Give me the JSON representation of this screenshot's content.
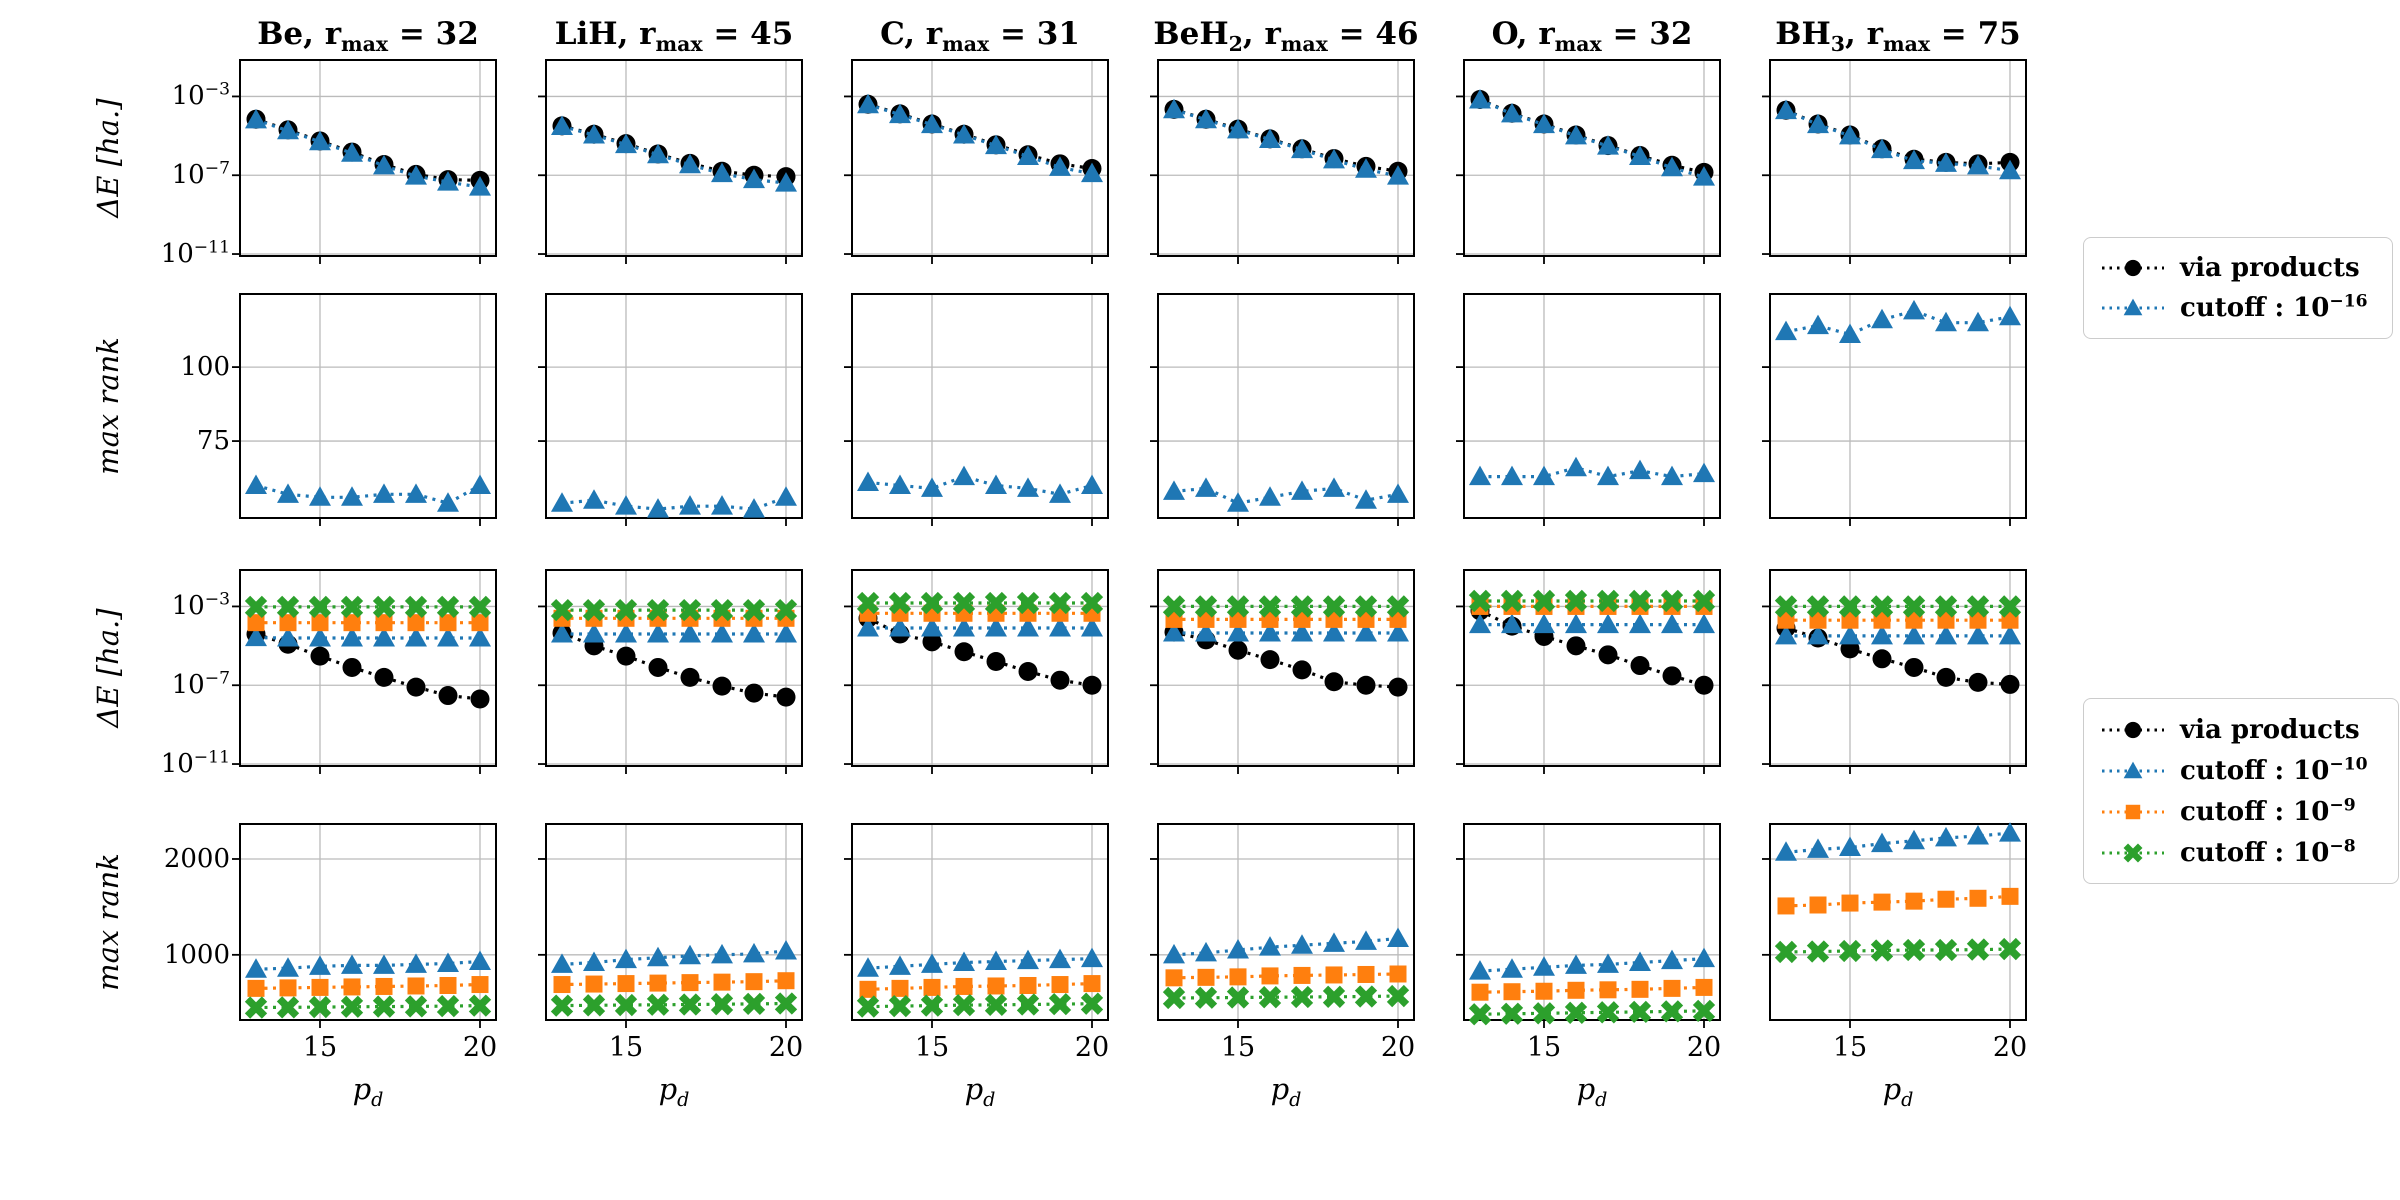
{
  "columns": [
    {
      "title": "Be,  r_max = 32"
    },
    {
      "title": "LiH,  r_max = 45"
    },
    {
      "title": "C,  r_max = 31"
    },
    {
      "title": "BeH_2,  r_max = 46"
    },
    {
      "title": "O,  r_max = 32"
    },
    {
      "title": "BH_3,  r_max = 75"
    }
  ],
  "colors": {
    "black": "#000000",
    "blue": "#1f77b4",
    "orange": "#ff7f0e",
    "green": "#2ca02c",
    "grid": "#bbbbbb"
  },
  "legends": [
    {
      "entries": [
        {
          "label": "via products",
          "series": "via products"
        },
        {
          "label": "cutoff : 10^-16",
          "series": "cutoff : 10^-16"
        }
      ]
    },
    {
      "entries": [
        {
          "label": "via products",
          "series": "via products"
        },
        {
          "label": "cutoff : 10^-10",
          "series": "cutoff : 10^-10"
        },
        {
          "label": "cutoff : 10^-9",
          "series": "cutoff : 10^-9"
        },
        {
          "label": "cutoff : 10^-8",
          "series": "cutoff : 10^-8"
        }
      ]
    }
  ],
  "chart_data": {
    "type": "scatter",
    "grid": true,
    "x_label": "p_d",
    "x": [
      13,
      14,
      15,
      16,
      17,
      18,
      19,
      20
    ],
    "x_ticks": [
      15,
      20
    ],
    "x_range": [
      12.5,
      20.5
    ],
    "columns": [
      "Be",
      "LiH",
      "C",
      "BeH_2",
      "O",
      "BH_3"
    ],
    "series_styles": {
      "via products": {
        "color": "#000000",
        "marker": "circle"
      },
      "cutoff : 10^-16": {
        "color": "#1f77b4",
        "marker": "triangle"
      },
      "cutoff : 10^-10": {
        "color": "#1f77b4",
        "marker": "triangle"
      },
      "cutoff : 10^-9": {
        "color": "#ff7f0e",
        "marker": "square"
      },
      "cutoff : 10^-8": {
        "color": "#2ca02c",
        "marker": "x"
      }
    },
    "rows": [
      {
        "ylabel": "ΔE [ha.]",
        "scale": "log",
        "yticks": [
          "10^-3",
          "10^-7",
          "10^-11"
        ],
        "ylim_exp": [
          -1.15,
          -11.1
        ],
        "series": [
          "via products",
          "cutoff : 10^-16"
        ]
      },
      {
        "ylabel": "max rank",
        "scale": "linear",
        "yticks": [
          75,
          100
        ],
        "ylim": [
          49,
          124.7
        ],
        "series": [
          "cutoff : 10^-16"
        ]
      },
      {
        "ylabel": "ΔE [ha.]",
        "scale": "log",
        "yticks": [
          "10^-3",
          "10^-7",
          "10^-11"
        ],
        "ylim_exp": [
          -1.15,
          -11.1
        ],
        "series": [
          "via products",
          "cutoff : 10^-10",
          "cutoff : 10^-9",
          "cutoff : 10^-8"
        ]
      },
      {
        "ylabel": "max rank",
        "scale": "linear",
        "yticks": [
          1000,
          2000
        ],
        "ylim": [
          320,
          2365
        ],
        "series": [
          "cutoff : 10^-10",
          "cutoff : 10^-9",
          "cutoff : 10^-8"
        ]
      }
    ],
    "values": [
      [
        {
          "via products": [
            7e-05,
            2e-05,
            5.5e-06,
            1.5e-06,
            3.5e-07,
            1.1e-07,
            6e-08,
            5.5e-08
          ],
          "cutoff : 10^-16": [
            6.5e-05,
            1.8e-05,
            5e-06,
            1.3e-06,
            3e-07,
            9e-08,
            4.5e-08,
            2.5e-08
          ]
        },
        {
          "via products": [
            3.2e-05,
            1.2e-05,
            4e-06,
            1.2e-06,
            4e-07,
            1.6e-07,
            1e-07,
            8.5e-08
          ],
          "cutoff : 10^-16": [
            3e-05,
            1.1e-05,
            3.6e-06,
            1.1e-06,
            3.4e-07,
            1.2e-07,
            6e-08,
            4e-08
          ]
        },
        {
          "via products": [
            0.0004,
            0.00013,
            4e-05,
            1.2e-05,
            3.5e-06,
            1.1e-06,
            3.8e-07,
            2.2e-07
          ],
          "cutoff : 10^-16": [
            0.00038,
            0.00012,
            3.7e-05,
            1.1e-05,
            3.2e-06,
            9e-07,
            2.5e-07,
            1.2e-07
          ]
        },
        {
          "via products": [
            0.00022,
            7e-05,
            2.2e-05,
            7e-06,
            2.2e-06,
            7e-07,
            2.8e-07,
            1.6e-07
          ],
          "cutoff : 10^-16": [
            0.00021,
            6.6e-05,
            2e-05,
            6.5e-06,
            2e-06,
            6e-07,
            2e-07,
            9e-08
          ]
        },
        {
          "via products": [
            0.0007,
            0.00014,
            4e-05,
            1.1e-05,
            3.2e-06,
            1e-06,
            3.2e-07,
            1.4e-07
          ],
          "cutoff : 10^-16": [
            0.00066,
            0.00013,
            3.7e-05,
            1e-05,
            3e-06,
            9e-07,
            2.4e-07,
            8e-08
          ]
        },
        {
          "via products": [
            0.0002,
            4e-05,
            1.1e-05,
            2.2e-06,
            6.5e-07,
            4.5e-07,
            3.8e-07,
            4.5e-07
          ],
          "cutoff : 10^-16": [
            0.00019,
            3.7e-05,
            1e-05,
            2e-06,
            5.5e-07,
            4e-07,
            3e-07,
            1.7e-07
          ]
        }
      ],
      [
        {
          "cutoff : 10^-16": [
            60,
            57,
            56,
            56,
            57,
            57,
            54,
            60
          ]
        },
        {
          "cutoff : 10^-16": [
            54,
            55,
            53,
            52,
            53,
            53,
            52,
            56
          ]
        },
        {
          "cutoff : 10^-16": [
            61,
            60,
            59,
            63,
            60,
            59,
            57,
            60
          ]
        },
        {
          "cutoff : 10^-16": [
            58,
            59,
            54,
            56,
            58,
            59,
            55,
            57
          ]
        },
        {
          "cutoff : 10^-16": [
            63,
            63,
            63,
            66,
            63,
            65,
            63,
            64
          ]
        },
        {
          "cutoff : 10^-16": [
            112,
            114,
            111,
            116,
            119,
            115,
            115,
            117
          ]
        }
      ],
      [
        {
          "via products": [
            4e-05,
            1.2e-05,
            3e-06,
            8e-07,
            2.5e-07,
            8e-08,
            3e-08,
            2e-08
          ],
          "cutoff : 10^-10": [
            2.6e-05,
            2.5e-05,
            2.5e-05,
            2.5e-05,
            2.5e-05,
            2.5e-05,
            2.5e-05,
            2.5e-05
          ],
          "cutoff : 10^-9": [
            0.00015,
            0.00015,
            0.00015,
            0.00015,
            0.00015,
            0.00015,
            0.00015,
            0.00015
          ],
          "cutoff : 10^-8": [
            0.00095,
            0.00095,
            0.00095,
            0.00095,
            0.00095,
            0.00095,
            0.00095,
            0.00095
          ]
        },
        {
          "via products": [
            4.5e-05,
            1e-05,
            3e-06,
            8e-07,
            2.5e-07,
            9e-08,
            4e-08,
            2.5e-08
          ],
          "cutoff : 10^-10": [
            4e-05,
            4e-05,
            4e-05,
            4e-05,
            4e-05,
            4e-05,
            4e-05,
            4e-05
          ],
          "cutoff : 10^-9": [
            0.00025,
            0.00025,
            0.00025,
            0.00025,
            0.00025,
            0.00025,
            0.00025,
            0.00025
          ],
          "cutoff : 10^-8": [
            0.00065,
            0.00065,
            0.00065,
            0.00065,
            0.00065,
            0.00065,
            0.00065,
            0.00065
          ]
        },
        {
          "via products": [
            0.00025,
            4e-05,
            1.6e-05,
            5e-06,
            1.6e-06,
            5e-07,
            1.8e-07,
            1e-07
          ],
          "cutoff : 10^-10": [
            8e-05,
            8e-05,
            8e-05,
            8e-05,
            8e-05,
            8e-05,
            8e-05,
            8e-05
          ],
          "cutoff : 10^-9": [
            0.00045,
            0.00045,
            0.00045,
            0.00045,
            0.00045,
            0.00045,
            0.00045,
            0.00045
          ],
          "cutoff : 10^-8": [
            0.0015,
            0.0015,
            0.0015,
            0.0015,
            0.0015,
            0.0015,
            0.0015,
            0.0015
          ]
        },
        {
          "via products": [
            5e-05,
            2e-05,
            6e-06,
            2e-06,
            6e-07,
            1.5e-07,
            1e-07,
            8e-08
          ],
          "cutoff : 10^-10": [
            4.5e-05,
            4.5e-05,
            4.5e-05,
            4.5e-05,
            4.5e-05,
            4.5e-05,
            4.5e-05,
            4.5e-05
          ],
          "cutoff : 10^-9": [
            0.00022,
            0.00022,
            0.00022,
            0.00022,
            0.00022,
            0.00022,
            0.00022,
            0.00022
          ],
          "cutoff : 10^-8": [
            0.001,
            0.001,
            0.001,
            0.001,
            0.001,
            0.001,
            0.001,
            0.001
          ]
        },
        {
          "via products": [
            0.0006,
            0.0001,
            3e-05,
            1e-05,
            3.5e-06,
            1e-06,
            3e-07,
            1e-07
          ],
          "cutoff : 10^-10": [
            0.00012,
            0.00012,
            0.00012,
            0.00012,
            0.00012,
            0.00012,
            0.00012,
            0.00012
          ],
          "cutoff : 10^-9": [
            0.001,
            0.001,
            0.001,
            0.001,
            0.001,
            0.001,
            0.001,
            0.001
          ],
          "cutoff : 10^-8": [
            0.0019,
            0.0019,
            0.0019,
            0.0019,
            0.0019,
            0.0019,
            0.0019,
            0.0019
          ]
        },
        {
          "via products": [
            8e-05,
            2.5e-05,
            7e-06,
            2.2e-06,
            8e-07,
            2.5e-07,
            1.4e-07,
            1.1e-07
          ],
          "cutoff : 10^-10": [
            3.2e-05,
            3.2e-05,
            3.2e-05,
            3.2e-05,
            3.2e-05,
            3.2e-05,
            3.2e-05,
            3.2e-05
          ],
          "cutoff : 10^-9": [
            0.0002,
            0.0002,
            0.0002,
            0.0002,
            0.0002,
            0.0002,
            0.0002,
            0.0002
          ],
          "cutoff : 10^-8": [
            0.001,
            0.001,
            0.001,
            0.001,
            0.001,
            0.001,
            0.001,
            0.001
          ]
        }
      ],
      [
        {
          "cutoff : 10^-10": [
            850,
            860,
            880,
            890,
            890,
            900,
            910,
            930
          ],
          "cutoff : 10^-9": [
            650,
            655,
            660,
            665,
            670,
            675,
            680,
            690
          ],
          "cutoff : 10^-8": [
            450,
            452,
            455,
            458,
            460,
            462,
            465,
            470
          ]
        },
        {
          "cutoff : 10^-10": [
            900,
            920,
            950,
            970,
            990,
            1000,
            1010,
            1040
          ],
          "cutoff : 10^-9": [
            690,
            695,
            700,
            705,
            710,
            715,
            720,
            730
          ],
          "cutoff : 10^-8": [
            470,
            473,
            476,
            479,
            482,
            485,
            488,
            492
          ]
        },
        {
          "cutoff : 10^-10": [
            860,
            880,
            900,
            920,
            930,
            940,
            950,
            960
          ],
          "cutoff : 10^-9": [
            640,
            650,
            660,
            670,
            675,
            680,
            690,
            700
          ],
          "cutoff : 10^-8": [
            460,
            465,
            470,
            475,
            478,
            482,
            486,
            490
          ]
        },
        {
          "cutoff : 10^-10": [
            1000,
            1020,
            1050,
            1080,
            1100,
            1120,
            1140,
            1170
          ],
          "cutoff : 10^-9": [
            760,
            765,
            770,
            780,
            785,
            790,
            795,
            800
          ],
          "cutoff : 10^-8": [
            550,
            552,
            555,
            558,
            560,
            562,
            565,
            570
          ]
        },
        {
          "cutoff : 10^-10": [
            830,
            850,
            870,
            890,
            900,
            920,
            940,
            960
          ],
          "cutoff : 10^-9": [
            610,
            615,
            620,
            630,
            635,
            640,
            650,
            660
          ],
          "cutoff : 10^-8": [
            380,
            385,
            390,
            395,
            400,
            405,
            410,
            415
          ]
        },
        {
          "cutoff : 10^-10": [
            2070,
            2100,
            2120,
            2160,
            2190,
            2220,
            2240,
            2270
          ],
          "cutoff : 10^-9": [
            1510,
            1520,
            1540,
            1550,
            1560,
            1580,
            1590,
            1610
          ],
          "cutoff : 10^-8": [
            1030,
            1035,
            1040,
            1045,
            1050,
            1050,
            1055,
            1060
          ]
        }
      ]
    ]
  }
}
